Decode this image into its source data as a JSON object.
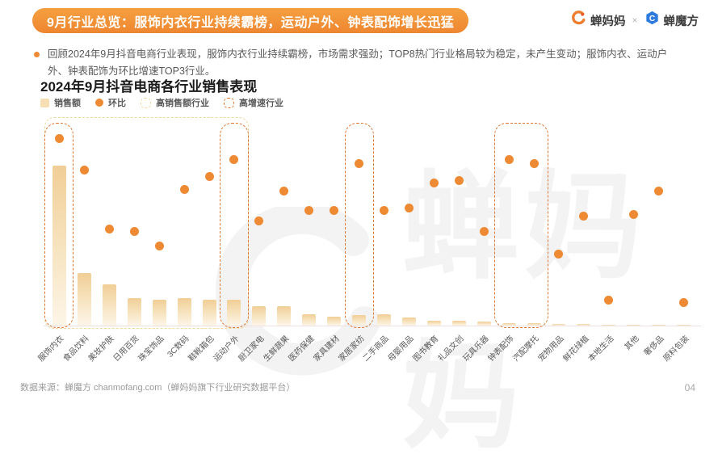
{
  "header": {
    "title": "9月行业总览：服饰内衣行业持续霸榜，运动户外、钟表配饰增长迅猛",
    "brand_left": "蝉妈妈",
    "brand_sep": "×",
    "brand_right": "蝉魔方"
  },
  "summary": {
    "bullet": "回顾2024年9月抖音电商行业表现，服饰内衣行业持续霸榜，市场需求强劲；TOP8热门行业格局较为稳定，未产生变动；服饰内衣、运动户外、钟表配饰为环比增速TOP3行业。"
  },
  "chart": {
    "title": "2024年9月抖音电商各行业销售表现",
    "legend": [
      {
        "marker": "bar",
        "label": "销售额"
      },
      {
        "marker": "dot",
        "label": "环比"
      },
      {
        "marker": "box-light",
        "label": "高销售额行业"
      },
      {
        "marker": "box-orange",
        "label": "高增速行业"
      }
    ],
    "watermark_text": "蝉妈妈"
  },
  "chart_data": {
    "type": "bar",
    "title": "2024年9月抖音电商各行业销售表现",
    "categories": [
      "服饰内衣",
      "食品饮料",
      "美妆护肤",
      "日用百货",
      "珠宝饰品",
      "3C数码",
      "鞋靴箱包",
      "运动户外",
      "厨卫家电",
      "生鲜蔬果",
      "医药保健",
      "家具建材",
      "家居家纺",
      "二手商品",
      "母婴用品",
      "图书教育",
      "礼品文创",
      "玩具乐器",
      "钟表配饰",
      "汽配摩托",
      "宠物用品",
      "鲜花绿植",
      "本地生活",
      "其他",
      "奢侈品",
      "原料包装"
    ],
    "series": [
      {
        "name": "销售额",
        "type": "bar",
        "unit": "relative-index (axis unlabeled in source, max bar = 100)",
        "values": [
          100,
          33,
          26,
          17,
          16,
          17,
          16,
          16,
          12,
          12,
          7,
          5.5,
          6.5,
          7,
          5,
          3,
          3,
          2.5,
          1.5,
          1.5,
          1,
          1,
          0.5,
          0.5,
          0.5,
          0.5
        ]
      },
      {
        "name": "环比",
        "type": "scatter",
        "unit": "relative-index (axis unlabeled in source, plot top = 100)",
        "values": [
          89,
          74,
          46,
          45,
          38,
          65,
          71,
          79,
          50,
          64,
          55,
          55,
          77,
          55,
          56,
          68,
          69,
          45,
          79,
          77,
          34,
          52,
          12,
          53,
          64,
          11
        ]
      }
    ],
    "annotations": {
      "high_sales_box": {
        "label": "高销售额行业",
        "categories": [
          "服饰内衣",
          "食品饮料",
          "美妆护肤",
          "日用百货",
          "珠宝饰品",
          "3C数码",
          "鞋靴箱包",
          "运动户外"
        ]
      },
      "high_growth_boxes": {
        "label": "高增速行业",
        "groups": [
          [
            "服饰内衣"
          ],
          [
            "运动户外"
          ],
          [
            "家居家纺"
          ],
          [
            "钟表配饰",
            "汽配摩托"
          ]
        ]
      }
    },
    "highlights": {
      "high_sales_range": {
        "from": 0,
        "to": 7
      },
      "high_growth_ranges": [
        {
          "from": 0,
          "to": 0
        },
        {
          "from": 7,
          "to": 7
        },
        {
          "from": 12,
          "to": 12
        },
        {
          "from": 18,
          "to": 19
        }
      ]
    },
    "axes": {
      "y_axis_labels_visible": false,
      "gridlines": false,
      "x_label_rotation_deg": -45
    },
    "legend_position": "top-left"
  },
  "colors": {
    "banner_orange": "#EE8630",
    "accent_orange": "#EE8A33",
    "bar_fill_top": "#F1CE96",
    "high_sales_box_border": "#EFD99F",
    "high_growth_box_border": "#E0762F",
    "brand_blue": "#2E7BDD",
    "text_gray": "#595959"
  },
  "footer": {
    "source": "数据来源：蝉魔方 chanmofang.com（蝉妈妈旗下行业研究数据平台）",
    "page": "04"
  }
}
